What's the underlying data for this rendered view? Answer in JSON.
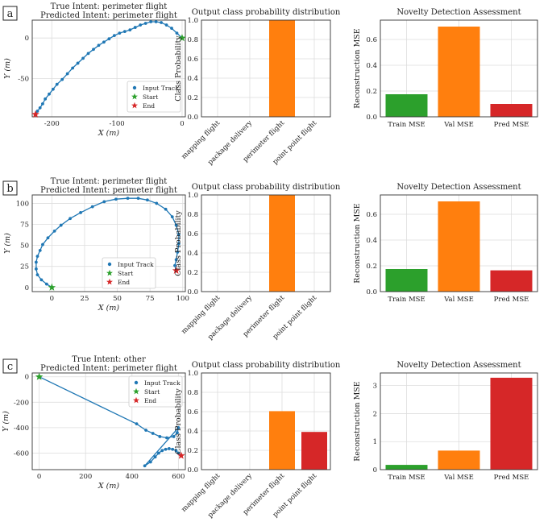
{
  "panels": [
    {
      "letter": "a",
      "track": {
        "title_lines": [
          "True Intent: perimeter flight",
          "Predicted Intent: perimeter flight"
        ],
        "xlabel": "X (m)",
        "ylabel": "Y (m)",
        "xlim": [
          -230,
          5
        ],
        "ylim": [
          -97,
          22
        ],
        "xticks": [
          -200,
          -100,
          0
        ],
        "yticks": [
          -50,
          0
        ],
        "legend": {
          "items": [
            "Input Track",
            "Start",
            "End"
          ],
          "position": "lower-right"
        },
        "points": [
          [
            0,
            0
          ],
          [
            -8,
            6
          ],
          [
            -16,
            12
          ],
          [
            -24,
            16
          ],
          [
            -32,
            19
          ],
          [
            -40,
            20
          ],
          [
            -48,
            20
          ],
          [
            -56,
            18
          ],
          [
            -64,
            16
          ],
          [
            -72,
            13
          ],
          [
            -80,
            10
          ],
          [
            -88,
            8
          ],
          [
            -96,
            6
          ],
          [
            -104,
            3
          ],
          [
            -112,
            -1
          ],
          [
            -120,
            -5
          ],
          [
            -128,
            -9
          ],
          [
            -136,
            -14
          ],
          [
            -144,
            -19
          ],
          [
            -152,
            -25
          ],
          [
            -160,
            -31
          ],
          [
            -168,
            -37
          ],
          [
            -176,
            -44
          ],
          [
            -184,
            -51
          ],
          [
            -192,
            -57
          ],
          [
            -198,
            -63
          ],
          [
            -204,
            -69
          ],
          [
            -210,
            -75
          ],
          [
            -214,
            -81
          ],
          [
            -218,
            -86
          ],
          [
            -222,
            -90
          ],
          [
            -225,
            -94
          ]
        ],
        "start": [
          0,
          0
        ],
        "end": [
          -225,
          -94
        ]
      },
      "probs": {
        "title": "Output class probability distribution",
        "ylabel": "Class Probability",
        "categories": [
          "mapping flight",
          "package delivery",
          "perimeter flight",
          "point point flight"
        ],
        "values": [
          0,
          0,
          1.0,
          0
        ],
        "colors": [
          "#ff7f0e",
          "#ff7f0e",
          "#ff7f0e",
          "#d62728"
        ],
        "ylim": [
          0,
          1.0
        ],
        "yticks": [
          0.0,
          0.2,
          0.4,
          0.6,
          0.8,
          1.0
        ]
      },
      "novelty": {
        "title": "Novelty Detection Assessment",
        "ylabel": "Reconstruction MSE",
        "categories": [
          "Train MSE",
          "Val MSE",
          "Pred MSE"
        ],
        "values": [
          0.175,
          0.7,
          0.1
        ],
        "colors": [
          "#2ca02c",
          "#ff7f0e",
          "#d62728"
        ],
        "ylim": [
          0,
          0.75
        ],
        "yticks": [
          0.0,
          0.2,
          0.4,
          0.6
        ]
      }
    },
    {
      "letter": "b",
      "track": {
        "title_lines": [
          "True Intent: perimeter flight",
          "Predicted Intent: perimeter flight"
        ],
        "xlabel": "X (m)",
        "ylabel": "Y (m)",
        "xlim": [
          -15,
          102
        ],
        "ylim": [
          -5,
          110
        ],
        "xticks": [
          0,
          25,
          50,
          75,
          100
        ],
        "yticks": [
          0,
          25,
          50,
          75,
          100
        ],
        "legend": {
          "items": [
            "Input Track",
            "Start",
            "End"
          ],
          "position": "lower-center"
        },
        "points": [
          [
            0,
            0
          ],
          [
            -4,
            4
          ],
          [
            -8,
            9
          ],
          [
            -11,
            15
          ],
          [
            -12,
            22
          ],
          [
            -12,
            30
          ],
          [
            -11,
            37
          ],
          [
            -9,
            44
          ],
          [
            -7,
            51
          ],
          [
            -3,
            59
          ],
          [
            2,
            67
          ],
          [
            7,
            74
          ],
          [
            14,
            82
          ],
          [
            22,
            89
          ],
          [
            31,
            96
          ],
          [
            40,
            102
          ],
          [
            49,
            105
          ],
          [
            58,
            106
          ],
          [
            66,
            106
          ],
          [
            73,
            104
          ],
          [
            80,
            100
          ],
          [
            87,
            93
          ],
          [
            92,
            84
          ],
          [
            95,
            74
          ],
          [
            97,
            63
          ],
          [
            97,
            52
          ],
          [
            96,
            42
          ],
          [
            95,
            33
          ],
          [
            94,
            26
          ],
          [
            95,
            20
          ]
        ],
        "start": [
          0,
          0
        ],
        "end": [
          95,
          20
        ]
      },
      "probs": {
        "title": "Output class probability distribution",
        "ylabel": "Class Probability",
        "categories": [
          "mapping flight",
          "package delivery",
          "perimeter flight",
          "point point flight"
        ],
        "values": [
          0,
          0,
          1.0,
          0
        ],
        "colors": [
          "#ff7f0e",
          "#ff7f0e",
          "#ff7f0e",
          "#d62728"
        ],
        "ylim": [
          0,
          1.0
        ],
        "yticks": [
          0.0,
          0.2,
          0.4,
          0.6,
          0.8,
          1.0
        ]
      },
      "novelty": {
        "title": "Novelty Detection Assessment",
        "ylabel": "Reconstruction MSE",
        "categories": [
          "Train MSE",
          "Val MSE",
          "Pred MSE"
        ],
        "values": [
          0.175,
          0.7,
          0.165
        ],
        "colors": [
          "#2ca02c",
          "#ff7f0e",
          "#d62728"
        ],
        "ylim": [
          0,
          0.75
        ],
        "yticks": [
          0.0,
          0.2,
          0.4,
          0.6
        ]
      }
    },
    {
      "letter": "c",
      "track": {
        "title_lines": [
          "True Intent: other",
          "Predicted Intent: perimeter flight"
        ],
        "xlabel": "X (m)",
        "ylabel": "Y (m)",
        "xlim": [
          -30,
          630
        ],
        "ylim": [
          -730,
          30
        ],
        "xticks": [
          0,
          200,
          400,
          600
        ],
        "yticks": [
          -600,
          -400,
          -200,
          0
        ],
        "legend": {
          "items": [
            "Input Track",
            "Start",
            "End"
          ],
          "position": "upper-right"
        },
        "points": [
          [
            0,
            0
          ],
          [
            420,
            -370
          ],
          [
            460,
            -420
          ],
          [
            490,
            -445
          ],
          [
            520,
            -470
          ],
          [
            550,
            -480
          ],
          [
            580,
            -470
          ],
          [
            595,
            -440
          ],
          [
            600,
            -400
          ],
          [
            455,
            -700
          ],
          [
            480,
            -670
          ],
          [
            500,
            -630
          ],
          [
            515,
            -600
          ],
          [
            530,
            -580
          ],
          [
            545,
            -570
          ],
          [
            560,
            -565
          ],
          [
            575,
            -570
          ],
          [
            590,
            -580
          ],
          [
            600,
            -600
          ],
          [
            612,
            -620
          ]
        ],
        "start": [
          0,
          0
        ],
        "end": [
          612,
          -620
        ]
      },
      "probs": {
        "title": "Output class probability distribution",
        "ylabel": "Class Probability",
        "categories": [
          "mapping flight",
          "package delivery",
          "perimeter flight",
          "point point flight"
        ],
        "values": [
          0,
          0,
          0.605,
          0.39
        ],
        "colors": [
          "#ff7f0e",
          "#ff7f0e",
          "#ff7f0e",
          "#d62728"
        ],
        "ylim": [
          0,
          1.0
        ],
        "yticks": [
          0.0,
          0.2,
          0.4,
          0.6,
          0.8,
          1.0
        ]
      },
      "novelty": {
        "title": "Novelty Detection Assessment",
        "ylabel": "Reconstruction MSE",
        "categories": [
          "Train MSE",
          "Val MSE",
          "Pred MSE"
        ],
        "values": [
          0.17,
          0.68,
          3.28
        ],
        "colors": [
          "#2ca02c",
          "#ff7f0e",
          "#d62728"
        ],
        "ylim": [
          0,
          3.45
        ],
        "yticks": [
          0,
          1,
          2,
          3
        ]
      }
    }
  ],
  "chart_data": [
    {
      "type": "line",
      "panel": "a",
      "title": "True Intent: perimeter flight / Predicted Intent: perimeter flight",
      "xlabel": "X (m)",
      "ylabel": "Y (m)",
      "xlim": [
        -230,
        5
      ],
      "ylim": [
        -97,
        22
      ]
    },
    {
      "type": "bar",
      "panel": "a",
      "title": "Output class probability distribution",
      "categories": [
        "mapping flight",
        "package delivery",
        "perimeter flight",
        "point point flight"
      ],
      "values": [
        0,
        0,
        1.0,
        0
      ],
      "ylabel": "Class Probability",
      "ylim": [
        0,
        1.0
      ]
    },
    {
      "type": "bar",
      "panel": "a",
      "title": "Novelty Detection Assessment",
      "categories": [
        "Train MSE",
        "Val MSE",
        "Pred MSE"
      ],
      "values": [
        0.175,
        0.7,
        0.1
      ],
      "ylabel": "Reconstruction MSE",
      "ylim": [
        0,
        0.75
      ]
    },
    {
      "type": "line",
      "panel": "b",
      "title": "True Intent: perimeter flight / Predicted Intent: perimeter flight",
      "xlabel": "X (m)",
      "ylabel": "Y (m)",
      "xlim": [
        -15,
        102
      ],
      "ylim": [
        -5,
        110
      ]
    },
    {
      "type": "bar",
      "panel": "b",
      "title": "Output class probability distribution",
      "categories": [
        "mapping flight",
        "package delivery",
        "perimeter flight",
        "point point flight"
      ],
      "values": [
        0,
        0,
        1.0,
        0
      ],
      "ylabel": "Class Probability",
      "ylim": [
        0,
        1.0
      ]
    },
    {
      "type": "bar",
      "panel": "b",
      "title": "Novelty Detection Assessment",
      "categories": [
        "Train MSE",
        "Val MSE",
        "Pred MSE"
      ],
      "values": [
        0.175,
        0.7,
        0.165
      ],
      "ylabel": "Reconstruction MSE",
      "ylim": [
        0,
        0.75
      ]
    },
    {
      "type": "line",
      "panel": "c",
      "title": "True Intent: other / Predicted Intent: perimeter flight",
      "xlabel": "X (m)",
      "ylabel": "Y (m)",
      "xlim": [
        -30,
        630
      ],
      "ylim": [
        -730,
        30
      ]
    },
    {
      "type": "bar",
      "panel": "c",
      "title": "Output class probability distribution",
      "categories": [
        "mapping flight",
        "package delivery",
        "perimeter flight",
        "point point flight"
      ],
      "values": [
        0,
        0,
        0.605,
        0.39
      ],
      "ylabel": "Class Probability",
      "ylim": [
        0,
        1.0
      ]
    },
    {
      "type": "bar",
      "panel": "c",
      "title": "Novelty Detection Assessment",
      "categories": [
        "Train MSE",
        "Val MSE",
        "Pred MSE"
      ],
      "values": [
        0.17,
        0.68,
        3.28
      ],
      "ylabel": "Reconstruction MSE",
      "ylim": [
        0,
        3.45
      ]
    }
  ]
}
